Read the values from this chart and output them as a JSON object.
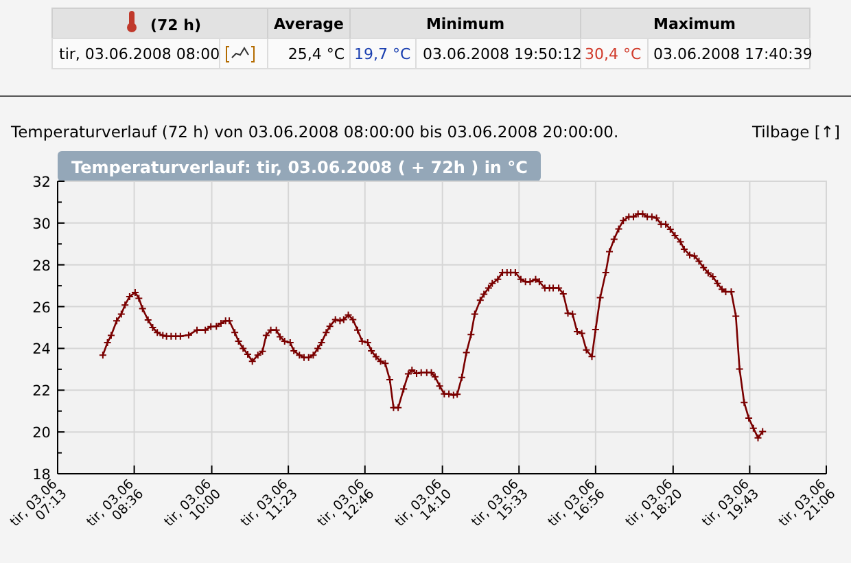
{
  "chart_data": {
    "type": "line",
    "title": "Temperaturverlauf: tir, 03.06.2008 ( + 72h ) in °C",
    "subtitle": "Temperaturverlauf (72 h) von 03.06.2008 08:00:00 bis 03.06.2008 20:00:00.",
    "annotations": [
      "(72 h)",
      "Average",
      "Minimum",
      "Maximum",
      "tir, 03.06.2008 08:00",
      "25,4 °C",
      "19,7 °C",
      "03.06.2008 19:50:12",
      "30,4 °C",
      "03.06.2008 17:40:39",
      "Tilbage [↑]"
    ],
    "xlim": [
      "2008-06-03T07:13",
      "2008-06-03T21:06"
    ],
    "xticks": [
      {
        "value": "2008-06-03T07:13",
        "label": "tir, 03.06 07:13"
      },
      {
        "value": "2008-06-03T08:36",
        "label": "tir, 03.06 08:36"
      },
      {
        "value": "2008-06-03T10:00",
        "label": "tir, 03.06 10:00"
      },
      {
        "value": "2008-06-03T11:23",
        "label": "tir, 03.06 11:23"
      },
      {
        "value": "2008-06-03T12:46",
        "label": "tir, 03.06 12:46"
      },
      {
        "value": "2008-06-03T14:10",
        "label": "tir, 03.06 14:10"
      },
      {
        "value": "2008-06-03T15:33",
        "label": "tir, 03.06 15:33"
      },
      {
        "value": "2008-06-03T16:56",
        "label": "tir, 03.06 16:56"
      },
      {
        "value": "2008-06-03T18:20",
        "label": "tir, 03.06 18:20"
      },
      {
        "value": "2008-06-03T19:43",
        "label": "tir, 03.06 19:43"
      },
      {
        "value": "2008-06-03T21:06",
        "label": "tir, 03.06 21:06"
      }
    ],
    "ylim": [
      18,
      32
    ],
    "yticks": [
      18,
      {
        "value": 19,
        "label": null
      },
      20,
      {
        "value": 21,
        "label": null
      },
      22,
      {
        "value": 23,
        "label": null
      },
      24,
      {
        "value": 25,
        "label": null
      },
      26,
      {
        "value": 27,
        "label": null
      },
      28,
      {
        "value": 29,
        "label": null
      },
      30,
      {
        "value": 31,
        "label": null
      },
      32
    ],
    "grid": true,
    "marker": "cross",
    "line_style": "solid",
    "series": [
      {
        "color": "#7a0000",
        "x": [
          "2008-06-03T08:02",
          "2008-06-03T08:07",
          "2008-06-03T08:11",
          "2008-06-03T08:17",
          "2008-06-03T08:22",
          "2008-06-03T08:26",
          "2008-06-03T08:31",
          "2008-06-03T08:37",
          "2008-06-03T08:41",
          "2008-06-03T08:45",
          "2008-06-03T08:51",
          "2008-06-03T08:56",
          "2008-06-03T09:01",
          "2008-06-03T09:07",
          "2008-06-03T09:11",
          "2008-06-03T09:16",
          "2008-06-03T09:21",
          "2008-06-03T09:26",
          "2008-06-03T09:35",
          "2008-06-03T09:44",
          "2008-06-03T09:53",
          "2008-06-03T09:59",
          "2008-06-03T10:05",
          "2008-06-03T10:10",
          "2008-06-03T10:15",
          "2008-06-03T10:19",
          "2008-06-03T10:25",
          "2008-06-03T10:29",
          "2008-06-03T10:34",
          "2008-06-03T10:39",
          "2008-06-03T10:44",
          "2008-06-03T10:50",
          "2008-06-03T10:55",
          "2008-06-03T10:59",
          "2008-06-03T11:04",
          "2008-06-03T11:10",
          "2008-06-03T11:14",
          "2008-06-03T11:19",
          "2008-06-03T11:25",
          "2008-06-03T11:29",
          "2008-06-03T11:35",
          "2008-06-03T11:40",
          "2008-06-03T11:45",
          "2008-06-03T11:50",
          "2008-06-03T11:55",
          "2008-06-03T11:59",
          "2008-06-03T12:04",
          "2008-06-03T12:08",
          "2008-06-03T12:14",
          "2008-06-03T12:19",
          "2008-06-03T12:23",
          "2008-06-03T12:28",
          "2008-06-03T12:33",
          "2008-06-03T12:38",
          "2008-06-03T12:43",
          "2008-06-03T12:49",
          "2008-06-03T12:53",
          "2008-06-03T12:58",
          "2008-06-03T13:03",
          "2008-06-03T13:08",
          "2008-06-03T13:13",
          "2008-06-03T13:17",
          "2008-06-03T13:22",
          "2008-06-03T13:28",
          "2008-06-03T13:33",
          "2008-06-03T13:37",
          "2008-06-03T13:42",
          "2008-06-03T13:47",
          "2008-06-03T13:53",
          "2008-06-03T13:58",
          "2008-06-03T14:02",
          "2008-06-03T14:07",
          "2008-06-03T14:12",
          "2008-06-03T14:17",
          "2008-06-03T14:22",
          "2008-06-03T14:26",
          "2008-06-03T14:31",
          "2008-06-03T14:36",
          "2008-06-03T14:41",
          "2008-06-03T14:45",
          "2008-06-03T14:51",
          "2008-06-03T14:55",
          "2008-06-03T15:00",
          "2008-06-03T15:04",
          "2008-06-03T15:10",
          "2008-06-03T15:15",
          "2008-06-03T15:20",
          "2008-06-03T15:24",
          "2008-06-03T15:29",
          "2008-06-03T15:35",
          "2008-06-03T15:40",
          "2008-06-03T15:45",
          "2008-06-03T15:51",
          "2008-06-03T15:55",
          "2008-06-03T16:01",
          "2008-06-03T16:06",
          "2008-06-03T16:10",
          "2008-06-03T16:16",
          "2008-06-03T16:21",
          "2008-06-03T16:26",
          "2008-06-03T16:31",
          "2008-06-03T16:36",
          "2008-06-03T16:41",
          "2008-06-03T16:46",
          "2008-06-03T16:52",
          "2008-06-03T16:56",
          "2008-06-03T17:01",
          "2008-06-03T17:07",
          "2008-06-03T17:11",
          "2008-06-03T17:16",
          "2008-06-03T17:21",
          "2008-06-03T17:26",
          "2008-06-03T17:32",
          "2008-06-03T17:37",
          "2008-06-03T17:42",
          "2008-06-03T17:47",
          "2008-06-03T17:52",
          "2008-06-03T17:57",
          "2008-06-03T18:02",
          "2008-06-03T18:07",
          "2008-06-03T18:12",
          "2008-06-03T18:17",
          "2008-06-03T18:22",
          "2008-06-03T18:28",
          "2008-06-03T18:32",
          "2008-06-03T18:38",
          "2008-06-03T18:43",
          "2008-06-03T18:48",
          "2008-06-03T18:53",
          "2008-06-03T18:58",
          "2008-06-03T19:03",
          "2008-06-03T19:08",
          "2008-06-03T19:13",
          "2008-06-03T19:17",
          "2008-06-03T19:23",
          "2008-06-03T19:28",
          "2008-06-03T19:32",
          "2008-06-03T19:37",
          "2008-06-03T19:42",
          "2008-06-03T19:47",
          "2008-06-03T19:52",
          "2008-06-03T19:57"
        ],
        "values": [
          23.68,
          24.28,
          24.62,
          25.32,
          25.64,
          26.08,
          26.48,
          26.68,
          26.4,
          25.9,
          25.36,
          25.0,
          24.76,
          24.62,
          24.58,
          24.58,
          24.58,
          24.58,
          24.64,
          24.88,
          24.88,
          25.04,
          25.06,
          25.2,
          25.32,
          25.32,
          24.76,
          24.34,
          24.0,
          23.72,
          23.38,
          23.68,
          23.86,
          24.62,
          24.88,
          24.88,
          24.56,
          24.34,
          24.28,
          23.88,
          23.68,
          23.56,
          23.56,
          23.68,
          24.0,
          24.28,
          24.76,
          25.06,
          25.38,
          25.32,
          25.38,
          25.6,
          25.38,
          24.88,
          24.34,
          24.28,
          23.88,
          23.6,
          23.38,
          23.28,
          22.5,
          21.16,
          21.16,
          22.06,
          22.78,
          22.96,
          22.8,
          22.84,
          22.84,
          22.84,
          22.64,
          22.2,
          21.82,
          21.82,
          21.76,
          21.8,
          22.61,
          23.8,
          24.66,
          25.64,
          26.31,
          26.59,
          26.89,
          27.11,
          27.31,
          27.63,
          27.63,
          27.63,
          27.63,
          27.31,
          27.19,
          27.19,
          27.31,
          27.19,
          26.89,
          26.89,
          26.89,
          26.89,
          26.61,
          25.68,
          25.64,
          24.8,
          24.72,
          23.92,
          23.61,
          24.9,
          26.43,
          27.63,
          28.63,
          29.22,
          29.72,
          30.12,
          30.3,
          30.3,
          30.44,
          30.44,
          30.3,
          30.3,
          30.24,
          29.94,
          29.94,
          29.7,
          29.4,
          29.1,
          28.75,
          28.47,
          28.43,
          28.17,
          27.87,
          27.61,
          27.43,
          27.11,
          26.83,
          26.71,
          26.71,
          25.54,
          23.01,
          21.41,
          20.66,
          20.18,
          19.72,
          20.02
        ]
      }
    ]
  }
}
